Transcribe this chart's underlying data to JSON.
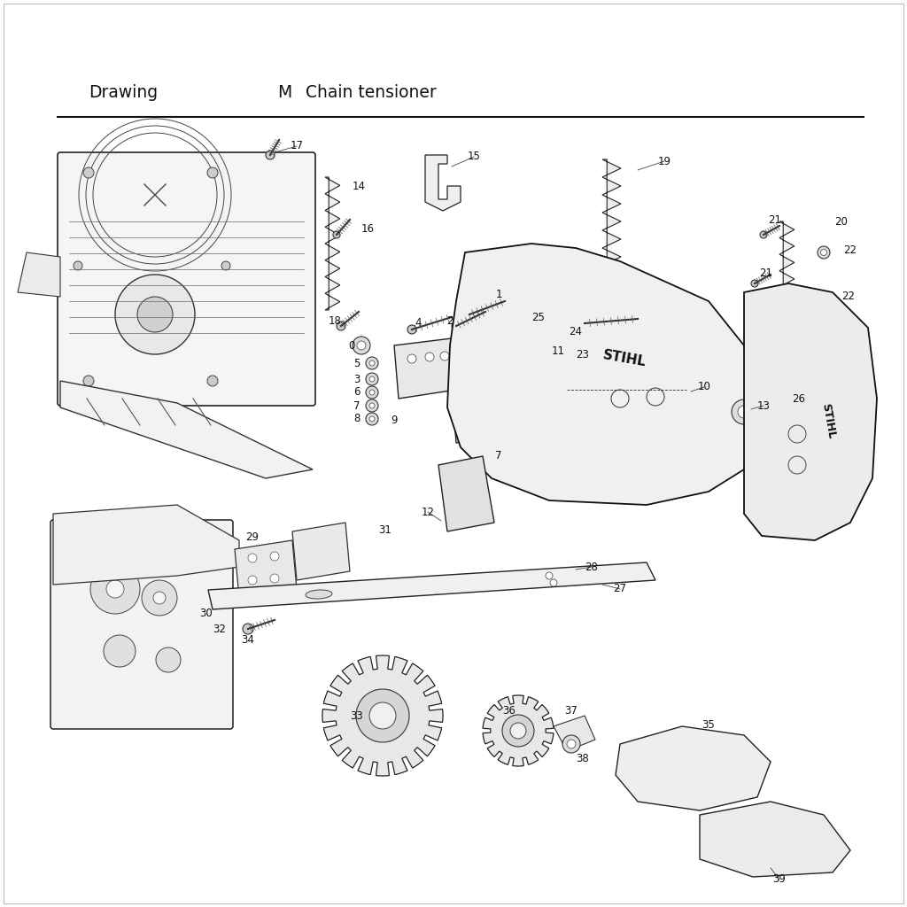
{
  "title_left": "Drawing",
  "title_mid": "M",
  "title_right": "Chain tensioner",
  "background_color": "#ffffff",
  "text_color": "#111111",
  "fig_width": 10.24,
  "fig_height": 10.24,
  "dpi": 100,
  "header_fontsize": 13.5,
  "border_color": "#aaaaaa",
  "line_color": "#111111"
}
